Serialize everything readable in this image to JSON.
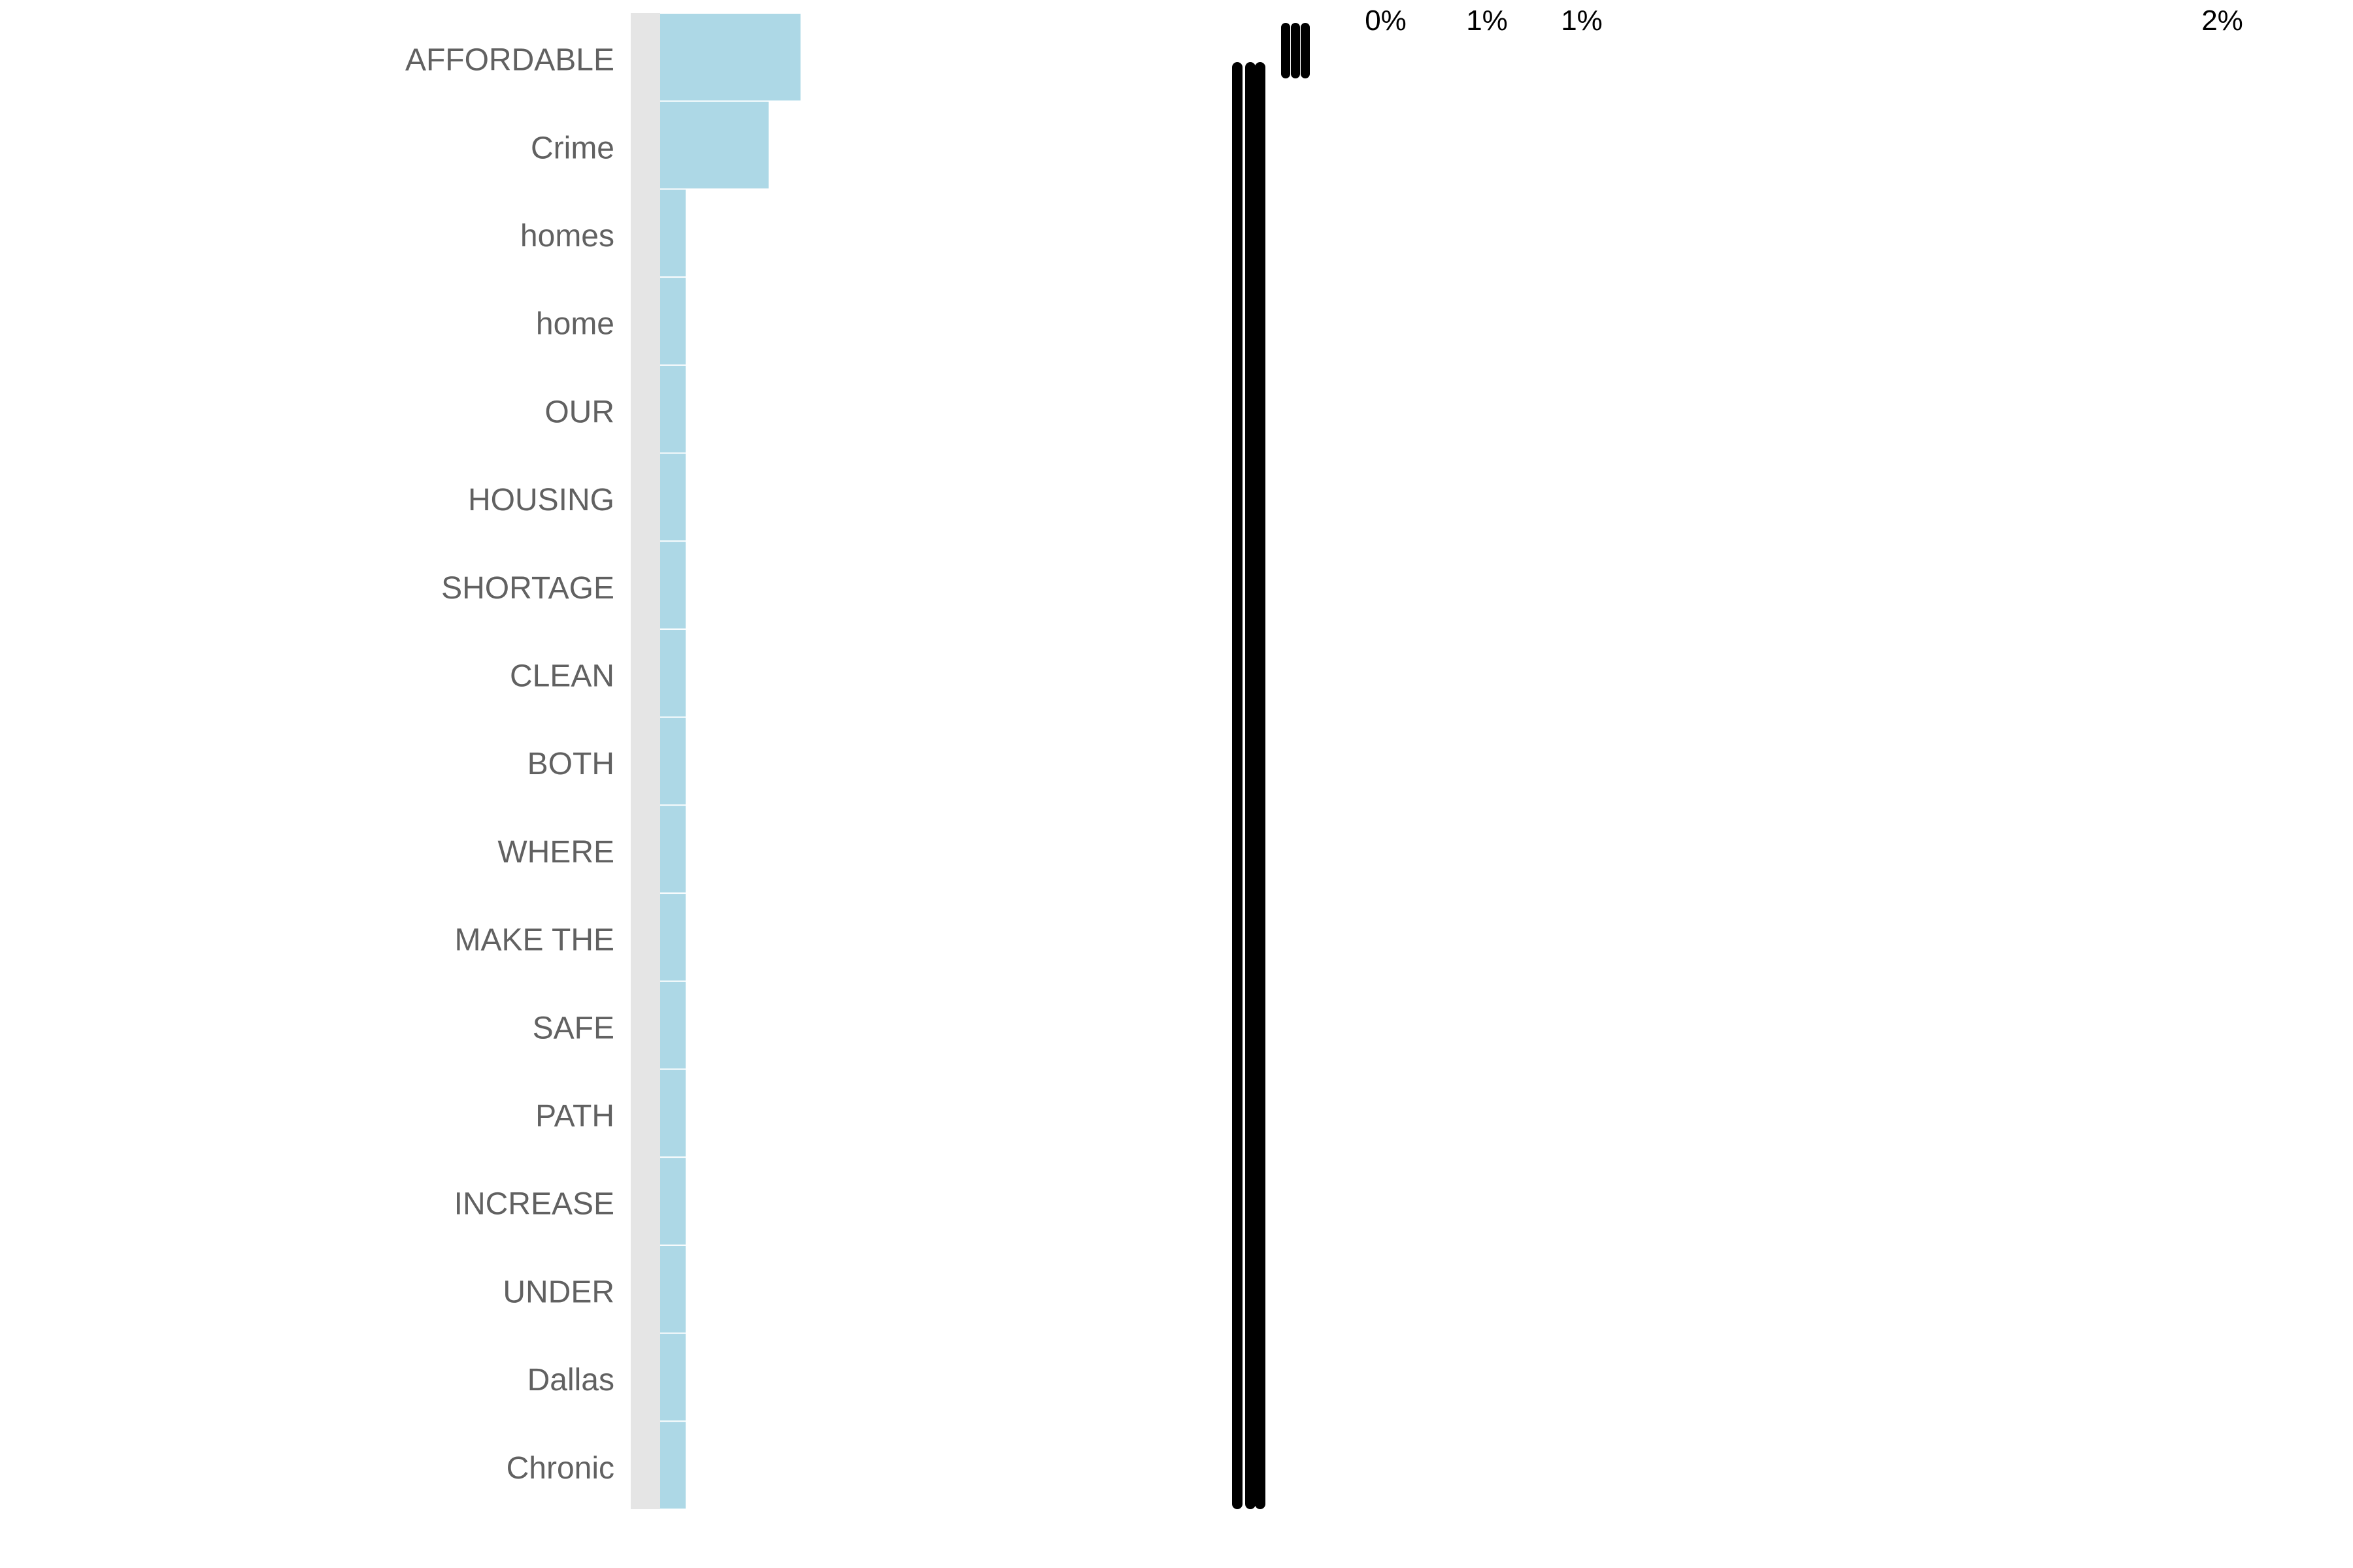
{
  "chart_data": {
    "type": "bar",
    "orientation": "horizontal",
    "title": "",
    "xlabel": "",
    "ylabel": "",
    "grid": false,
    "legend": "none",
    "value_format": "percent",
    "categories": [
      "AFFORDABLE",
      "Crime",
      "homes",
      "home",
      "OUR",
      "HOUSING",
      "SHORTAGE",
      "CLEAN",
      "BOTH",
      "WHERE",
      "MAKE THE",
      "SAFE",
      "PATH",
      "INCREASE",
      "UNDER",
      "Dallas",
      "Chronic"
    ],
    "values": [
      0.0022,
      0.0017,
      0.0004,
      0.0004,
      0.0004,
      0.0004,
      0.0004,
      0.0004,
      0.0004,
      0.0004,
      0.0004,
      0.0004,
      0.0004,
      0.0004,
      0.0004,
      0.0004,
      0.0004
    ],
    "xlim": [
      0,
      0.025
    ],
    "bar_color": "#add8e6",
    "panel_strip_color": "#e5e5e5",
    "label_color": "#616161",
    "data_label_color": "#000000",
    "tick_labels_top": [
      "0%",
      "1%",
      "1%",
      "2%"
    ]
  }
}
